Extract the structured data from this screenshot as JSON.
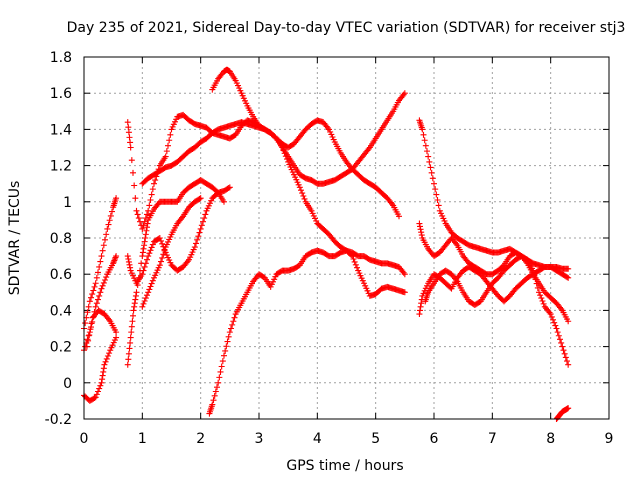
{
  "chart_data": {
    "type": "scatter",
    "title": "Day 235 of 2021, Sidereal Day-to-day VTEC variation (SDTVAR) for receiver stj3",
    "xlabel": "GPS time / hours",
    "ylabel": "SDTVAR / TECUs",
    "xlim": [
      0,
      9
    ],
    "ylim": [
      -0.2,
      1.8
    ],
    "xticks": [
      "0",
      "1",
      "2",
      "3",
      "4",
      "5",
      "6",
      "7",
      "8",
      "9"
    ],
    "yticks": [
      "-0.2",
      "0",
      "0.2",
      "0.4",
      "0.6",
      "0.8",
      "1",
      "1.2",
      "1.4",
      "1.6",
      "1.8"
    ],
    "grid": true,
    "marker": "+",
    "color": "#ff0000",
    "series": [
      {
        "x": [
          0.0,
          0.1,
          0.2,
          0.3,
          0.4,
          0.5,
          0.55
        ],
        "y": [
          0.3,
          0.45,
          0.55,
          0.7,
          0.85,
          0.97,
          1.02
        ]
      },
      {
        "x": [
          0.0,
          0.1,
          0.2,
          0.3,
          0.4,
          0.5,
          0.55
        ],
        "y": [
          0.18,
          0.28,
          0.42,
          0.52,
          0.6,
          0.66,
          0.7
        ]
      },
      {
        "x": [
          0.05,
          0.15,
          0.25,
          0.35,
          0.45,
          0.55
        ],
        "y": [
          0.2,
          0.36,
          0.4,
          0.38,
          0.34,
          0.28
        ]
      },
      {
        "x": [
          0.0,
          0.1,
          0.2,
          0.3,
          0.35,
          0.45,
          0.55
        ],
        "y": [
          -0.07,
          -0.1,
          -0.08,
          0.0,
          0.1,
          0.18,
          0.25
        ]
      },
      {
        "x": [
          0.75,
          0.8,
          0.9,
          1.0,
          1.1,
          1.2,
          1.3,
          1.4,
          1.5,
          1.6,
          1.7,
          1.8,
          1.9,
          2.0,
          2.1,
          2.2,
          2.3,
          2.4,
          2.5,
          2.6,
          2.7,
          2.8,
          2.9,
          3.0,
          3.1,
          3.2,
          3.3,
          3.4,
          3.5,
          3.6,
          3.7,
          3.8,
          3.9,
          4.0,
          4.1,
          4.2,
          4.3,
          4.4,
          4.5,
          4.6,
          4.7,
          4.8,
          4.9,
          5.0,
          5.1,
          5.2,
          5.3,
          5.4,
          5.5
        ],
        "y": [
          1.44,
          1.3,
          0.95,
          0.85,
          0.95,
          1.1,
          1.2,
          1.25,
          1.4,
          1.47,
          1.48,
          1.45,
          1.43,
          1.42,
          1.41,
          1.38,
          1.37,
          1.36,
          1.35,
          1.37,
          1.42,
          1.45,
          1.44,
          1.42,
          1.4,
          1.38,
          1.35,
          1.3,
          1.22,
          1.15,
          1.08,
          1.0,
          0.95,
          0.88,
          0.85,
          0.82,
          0.78,
          0.75,
          0.73,
          0.72,
          0.7,
          0.7,
          0.68,
          0.67,
          0.66,
          0.66,
          0.65,
          0.64,
          0.6
        ]
      },
      {
        "x": [
          1.0,
          1.1,
          1.2,
          1.3,
          1.4,
          1.5,
          1.6,
          1.7,
          1.8,
          1.9,
          2.0,
          2.1,
          2.2,
          2.3,
          2.4,
          2.5,
          2.6,
          2.7,
          2.8,
          2.9,
          3.0,
          3.1,
          3.2,
          3.3,
          3.4,
          3.5,
          3.6,
          3.7,
          3.8,
          3.9,
          4.0,
          4.1,
          4.2,
          4.3,
          4.4,
          4.5,
          4.6,
          4.7,
          4.8,
          4.9,
          5.0,
          5.1,
          5.2,
          5.3,
          5.4,
          5.5
        ],
        "y": [
          1.1,
          1.13,
          1.15,
          1.17,
          1.19,
          1.2,
          1.22,
          1.25,
          1.28,
          1.3,
          1.33,
          1.35,
          1.38,
          1.4,
          1.41,
          1.42,
          1.43,
          1.44,
          1.43,
          1.42,
          1.41,
          1.4,
          1.38,
          1.35,
          1.3,
          1.25,
          1.2,
          1.15,
          1.13,
          1.12,
          1.1,
          1.1,
          1.11,
          1.12,
          1.14,
          1.16,
          1.18,
          1.22,
          1.26,
          1.3,
          1.35,
          1.4,
          1.45,
          1.5,
          1.56,
          1.6
        ]
      },
      {
        "x": [
          2.2,
          2.3,
          2.4,
          2.45,
          2.5,
          2.6,
          2.7,
          2.8,
          2.9,
          3.0,
          3.1,
          3.2,
          3.3,
          3.4,
          3.5,
          3.6,
          3.7,
          3.8,
          3.9,
          4.0,
          4.1,
          4.2,
          4.3,
          4.4,
          4.5,
          4.6,
          4.7,
          4.8,
          4.9,
          5.0,
          5.1,
          5.2,
          5.3,
          5.4
        ],
        "y": [
          1.62,
          1.68,
          1.72,
          1.73,
          1.72,
          1.67,
          1.6,
          1.53,
          1.47,
          1.42,
          1.4,
          1.38,
          1.35,
          1.32,
          1.3,
          1.32,
          1.36,
          1.4,
          1.43,
          1.45,
          1.44,
          1.4,
          1.33,
          1.27,
          1.22,
          1.18,
          1.15,
          1.12,
          1.1,
          1.08,
          1.05,
          1.02,
          0.98,
          0.92
        ]
      },
      {
        "x": [
          0.75,
          0.8,
          0.9,
          1.0,
          1.1,
          1.2,
          1.3,
          1.4,
          1.5,
          1.6,
          1.7,
          1.8,
          1.9,
          2.0,
          2.1,
          2.2,
          2.3,
          2.4,
          2.5
        ],
        "y": [
          0.7,
          0.62,
          0.55,
          0.6,
          0.7,
          0.78,
          0.8,
          0.72,
          0.65,
          0.62,
          0.64,
          0.68,
          0.75,
          0.85,
          0.95,
          1.02,
          1.05,
          1.06,
          1.08
        ]
      },
      {
        "x": [
          0.75,
          0.8,
          0.85,
          0.9,
          1.0,
          1.05,
          1.1,
          1.2,
          1.3,
          1.4,
          1.5,
          1.6,
          1.7,
          1.8,
          1.9,
          2.0,
          2.1,
          2.2,
          2.3,
          2.4
        ],
        "y": [
          0.1,
          0.25,
          0.4,
          0.5,
          0.7,
          0.8,
          0.9,
          0.96,
          1.0,
          1.0,
          1.0,
          1.0,
          1.05,
          1.08,
          1.1,
          1.12,
          1.1,
          1.08,
          1.05,
          1.0
        ]
      },
      {
        "x": [
          1.0,
          1.1,
          1.2,
          1.3,
          1.4,
          1.5,
          1.6,
          1.7,
          1.8,
          1.9,
          2.0
        ],
        "y": [
          0.42,
          0.5,
          0.58,
          0.65,
          0.75,
          0.82,
          0.88,
          0.92,
          0.97,
          1.0,
          1.02
        ]
      },
      {
        "x": [
          2.15,
          2.2,
          2.3,
          2.4,
          2.5,
          2.6,
          2.7,
          2.8,
          2.9,
          3.0,
          3.1,
          3.2,
          3.3,
          3.4,
          3.5,
          3.6,
          3.7,
          3.8,
          3.9,
          4.0,
          4.1,
          4.2,
          4.3,
          4.4,
          4.5,
          4.6,
          4.7,
          4.8,
          4.9,
          5.0,
          5.1,
          5.2,
          5.3,
          5.4,
          5.5
        ],
        "y": [
          -0.17,
          -0.12,
          0.0,
          0.15,
          0.28,
          0.38,
          0.44,
          0.5,
          0.56,
          0.6,
          0.58,
          0.53,
          0.6,
          0.62,
          0.62,
          0.63,
          0.65,
          0.7,
          0.72,
          0.73,
          0.72,
          0.7,
          0.7,
          0.72,
          0.73,
          0.7,
          0.62,
          0.55,
          0.48,
          0.49,
          0.52,
          0.53,
          0.52,
          0.51,
          0.5
        ]
      },
      {
        "x": [
          5.75,
          5.8,
          5.9,
          6.0,
          6.1,
          6.2,
          6.3,
          6.4,
          6.5,
          6.6,
          6.7,
          6.8,
          6.9,
          7.0,
          7.1,
          7.2,
          7.3,
          7.4,
          7.5,
          7.6,
          7.7,
          7.8,
          7.9,
          8.0,
          8.1,
          8.2,
          8.3
        ],
        "y": [
          1.45,
          1.4,
          1.25,
          1.1,
          0.95,
          0.88,
          0.83,
          0.8,
          0.78,
          0.76,
          0.75,
          0.74,
          0.73,
          0.72,
          0.72,
          0.73,
          0.74,
          0.72,
          0.7,
          0.68,
          0.66,
          0.65,
          0.64,
          0.64,
          0.64,
          0.63,
          0.63
        ]
      },
      {
        "x": [
          5.75,
          5.8,
          5.9,
          6.0,
          6.1,
          6.2,
          6.3,
          6.4,
          6.5,
          6.6,
          6.7,
          6.8,
          6.9,
          7.0,
          7.1,
          7.2,
          7.3,
          7.4,
          7.5,
          7.6,
          7.7,
          7.8,
          7.9,
          8.0,
          8.1,
          8.2,
          8.3
        ],
        "y": [
          0.88,
          0.8,
          0.74,
          0.7,
          0.72,
          0.76,
          0.8,
          0.76,
          0.7,
          0.66,
          0.64,
          0.62,
          0.6,
          0.6,
          0.62,
          0.65,
          0.7,
          0.72,
          0.7,
          0.66,
          0.6,
          0.55,
          0.5,
          0.47,
          0.44,
          0.4,
          0.34
        ]
      },
      {
        "x": [
          5.75,
          5.8,
          5.9,
          6.0,
          6.1,
          6.2,
          6.3,
          6.4,
          6.5,
          6.6,
          6.7,
          6.8,
          6.9,
          7.0,
          7.1,
          7.2,
          7.3,
          7.4,
          7.5,
          7.6,
          7.7,
          7.8,
          7.9,
          8.0,
          8.1,
          8.2,
          8.3
        ],
        "y": [
          0.38,
          0.48,
          0.55,
          0.6,
          0.58,
          0.55,
          0.52,
          0.58,
          0.62,
          0.64,
          0.62,
          0.6,
          0.56,
          0.52,
          0.48,
          0.45,
          0.48,
          0.52,
          0.55,
          0.58,
          0.6,
          0.62,
          0.64,
          0.64,
          0.62,
          0.6,
          0.58
        ]
      },
      {
        "x": [
          5.85,
          5.9,
          6.0,
          6.1,
          6.2,
          6.3,
          6.4,
          6.5,
          6.6,
          6.7,
          6.8,
          6.9,
          7.0,
          7.1,
          7.2,
          7.3,
          7.4,
          7.5,
          7.6,
          7.7,
          7.8,
          7.9,
          8.0,
          8.1,
          8.2,
          8.3
        ],
        "y": [
          0.45,
          0.5,
          0.55,
          0.6,
          0.62,
          0.6,
          0.56,
          0.5,
          0.45,
          0.43,
          0.45,
          0.5,
          0.55,
          0.58,
          0.62,
          0.65,
          0.68,
          0.7,
          0.68,
          0.62,
          0.5,
          0.42,
          0.38,
          0.3,
          0.2,
          0.1
        ]
      },
      {
        "x": [
          8.1,
          8.15,
          8.2,
          8.25,
          8.3
        ],
        "y": [
          -0.2,
          -0.18,
          -0.16,
          -0.15,
          -0.14
        ]
      }
    ]
  }
}
